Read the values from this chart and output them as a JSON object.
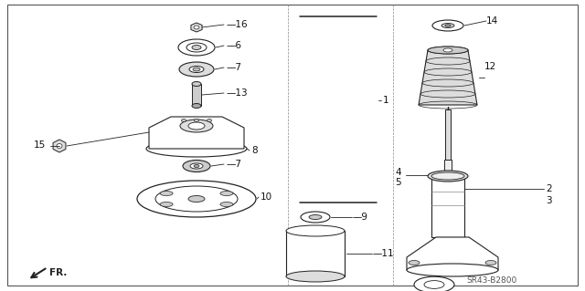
{
  "bg_color": "#ffffff",
  "border_color": "#444444",
  "part_number": "SR43-B2800",
  "fig_bg": "#ffffff",
  "line_color": "#222222",
  "label_color": "#111111",
  "figsize": [
    6.4,
    3.19
  ],
  "dpi": 100
}
